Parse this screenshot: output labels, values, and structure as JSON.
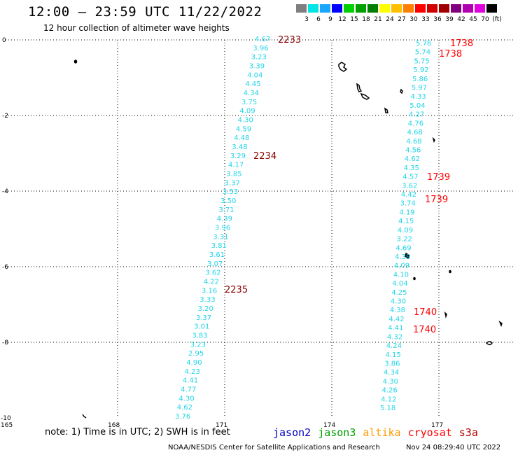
{
  "header": {
    "title": "12:00 – 23:59 UTC 11/22/2022",
    "subtitle": "12 hour collection of altimeter wave heights"
  },
  "legend": {
    "colors": [
      "#7f7f7f",
      "#00e5e5",
      "#1aa6ff",
      "#0000ff",
      "#00d000",
      "#00a000",
      "#008000",
      "#ffff00",
      "#ffc000",
      "#ff8000",
      "#ff0000",
      "#d00000",
      "#a00000",
      "#800080",
      "#b000b0",
      "#e000e0",
      "#000000"
    ],
    "labels": [
      "3",
      "6",
      "9",
      "12",
      "15",
      "18",
      "21",
      "24",
      "27",
      "30",
      "33",
      "36",
      "39",
      "42",
      "45",
      "70",
      "(ft)"
    ]
  },
  "axes": {
    "y_ticks": [
      "0",
      "-2",
      "-4",
      "-6",
      "-8",
      "-10"
    ],
    "x_ticks": [
      "165",
      "168",
      "171",
      "174",
      "177"
    ]
  },
  "track1": {
    "color": "#22d4e8",
    "values": [
      "4.67",
      "3.96",
      "3.23",
      "3.39",
      "4.04",
      "4.45",
      "4.34",
      "3.75",
      "4.09",
      "4.30",
      "4.59",
      "4.48",
      "3.48",
      "3.29",
      "4.17",
      "3.85",
      "3.37",
      "3.53",
      "3.50",
      "3.71",
      "4.39",
      "3.96",
      "3.31",
      "3.81",
      "3.61",
      "3.07",
      "3.62",
      "4.22",
      "3.16",
      "3.33",
      "3.20",
      "3.37",
      "3.01",
      "3.83",
      "3.23",
      "2.95",
      "4.90",
      "4.23",
      "4.41",
      "4.77",
      "4.30",
      "4.62",
      "3.76"
    ],
    "times": [
      {
        "label": "2233",
        "color": "#8b0000"
      },
      {
        "label": "2234",
        "color": "#8b0000"
      },
      {
        "label": "2235",
        "color": "#8b0000"
      }
    ]
  },
  "track2": {
    "color": "#22d4e8",
    "values": [
      "5.78",
      "5.74",
      "5.75",
      "5.92",
      "5.86",
      "5.97",
      "4.33",
      "5.04",
      "4.27",
      "4.76",
      "4.68",
      "4.68",
      "4.56",
      "4.62",
      "4.35",
      "4.57",
      "3.62",
      "4.42",
      "3.74",
      "4.19",
      "4.15",
      "4.09",
      "3.22",
      "4.69",
      "4.39",
      "4.09",
      "4.10",
      "4.04",
      "4.25",
      "4.30",
      "4.38",
      "4.42",
      "4.41",
      "4.32",
      "4.24",
      "4.15",
      "3.86",
      "4.34",
      "4.30",
      "4.26",
      "4.12",
      "5.18"
    ],
    "times": [
      {
        "label": "1738",
        "color": "#ff0000"
      },
      {
        "label": "1738",
        "color": "#ff0000"
      },
      {
        "label": "1739",
        "color": "#ff0000"
      },
      {
        "label": "1739",
        "color": "#ff0000"
      },
      {
        "label": "1740",
        "color": "#ff0000"
      },
      {
        "label": "1740",
        "color": "#ff0000"
      }
    ]
  },
  "footer": {
    "note": "note: 1) Time is in UTC; 2) SWH is in feet",
    "satellites": [
      {
        "name": "jason2",
        "color": "#0000c0"
      },
      {
        "name": "jason3",
        "color": "#00a000"
      },
      {
        "name": "altika",
        "color": "#ff9900"
      },
      {
        "name": "cryosat",
        "color": "#ff0000"
      },
      {
        "name": "s3a",
        "color": "#b00000"
      }
    ],
    "credit": "NOAA/NESDIS Center for Satellite Applications and Research",
    "timestamp": "Nov 24 08:29:40 UTC 2022"
  }
}
